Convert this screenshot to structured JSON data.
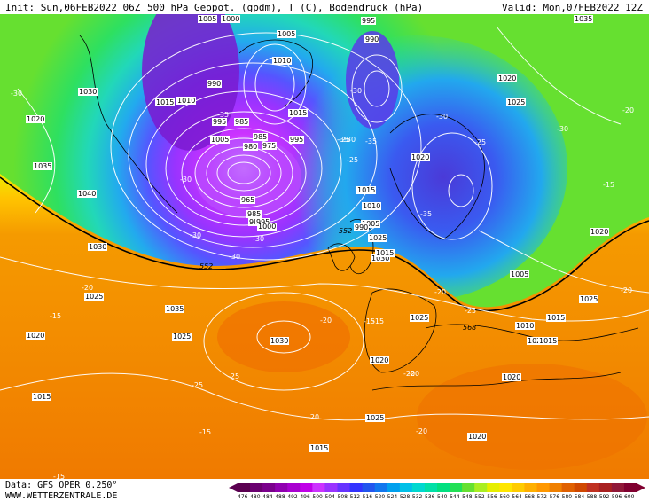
{
  "header": {
    "init": "Init: Sun,06FEB2022 06Z",
    "title": "500 hPa Geopot. (gpdm), T (C), Bodendruck (hPa)",
    "valid": "Valid: Mon,07FEB2022 12Z"
  },
  "footer": {
    "data_source": "Data: GFS OPER 0.250°",
    "website": "WWW.WETTERZENTRALE.DE"
  },
  "colorbar": {
    "ticks": [
      "476",
      "480",
      "484",
      "488",
      "492",
      "496",
      "500",
      "504",
      "508",
      "512",
      "516",
      "520",
      "524",
      "528",
      "532",
      "536",
      "540",
      "544",
      "548",
      "552",
      "556",
      "560",
      "564",
      "568",
      "572",
      "576",
      "580",
      "584",
      "588",
      "592",
      "596",
      "600"
    ],
    "colors": [
      "#5a0050",
      "#6a0070",
      "#7a008c",
      "#9000b0",
      "#a800d0",
      "#c000e8",
      "#cc33ff",
      "#9933ff",
      "#6633ff",
      "#3333ff",
      "#2255ee",
      "#1177ee",
      "#00a0ee",
      "#00c0e8",
      "#00d8d0",
      "#00e0a8",
      "#00e080",
      "#22e055",
      "#66e030",
      "#aaee22",
      "#e6ee00",
      "#ffe600",
      "#ffcc00",
      "#ffb000",
      "#ff9800",
      "#f08000",
      "#e06000",
      "#d04800",
      "#c03020",
      "#a82020",
      "#901838",
      "#800030"
    ]
  },
  "map": {
    "colors": {
      "violet": "#b000e0",
      "purple": "#8a1ad8",
      "blue": "#4a4af0",
      "cyan": "#22bfe8",
      "teal": "#22d8b8",
      "green": "#2ee060",
      "lime": "#8ae828",
      "yellow": "#f0ea00",
      "amber": "#ffc400",
      "orange": "#f59a00",
      "deep_orange": "#f07800"
    },
    "pressure_labels": [
      "1005",
      "1000",
      "995",
      "990",
      "1005",
      "1010",
      "1015",
      "1020",
      "1025",
      "1035",
      "1030",
      "1015",
      "1010",
      "990",
      "995",
      "985",
      "1005",
      "985",
      "980",
      "975",
      "995",
      "965",
      "985",
      "980",
      "995",
      "1000",
      "1015",
      "1010",
      "1005",
      "990",
      "1020",
      "1025",
      "1030",
      "1015",
      "1020",
      "1035",
      "1040",
      "1030",
      "1025",
      "1035",
      "1030",
      "1025",
      "1020",
      "1015",
      "1020",
      "1025",
      "1020",
      "1015",
      "1010",
      "1005",
      "1015",
      "1020",
      "1025",
      "1020",
      "1020",
      "1015",
      "1025"
    ],
    "temp_labels": [
      "-30",
      "-35",
      "-30",
      "-30",
      "-35",
      "-30",
      "-25",
      "-30",
      "-35",
      "-35",
      "-30",
      "-30",
      "-30",
      "-30",
      "-25",
      "-20",
      "-25",
      "-25",
      "-20",
      "-15",
      "-15",
      "-20",
      "-20",
      "-15",
      "-15",
      "-20",
      "-20",
      "-15",
      "-20",
      "-20",
      "-15",
      "-25",
      "-20",
      "-25"
    ],
    "height_labels": [
      "552",
      "552",
      "568"
    ]
  }
}
